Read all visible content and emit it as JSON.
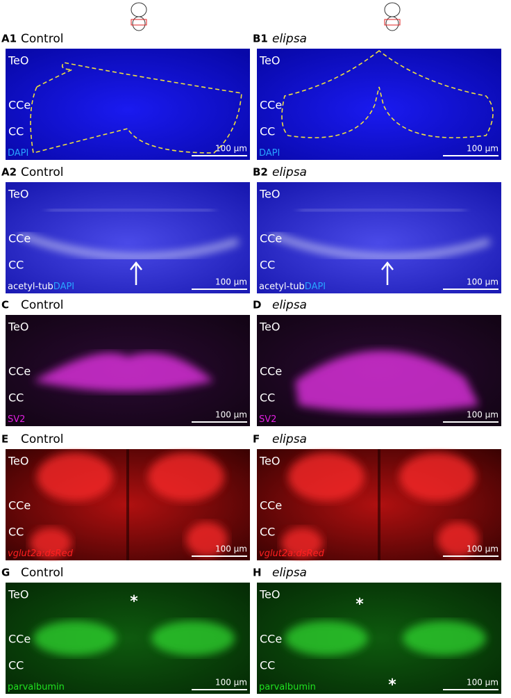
{
  "panels": [
    {
      "label": "A1",
      "title": "Control",
      "regions": [
        "TeO",
        "CCe",
        "CC"
      ],
      "stain": [
        "DAPI"
      ],
      "scale_bar": "100 µm"
    },
    {
      "label": "B1",
      "title": "elipsa",
      "regions": [
        "TeO",
        "CCe",
        "CC"
      ],
      "stain": [
        "DAPI"
      ],
      "scale_bar": "100 µm"
    },
    {
      "label": "A2",
      "title": "Control",
      "regions": [
        "TeO",
        "CCe",
        "CC"
      ],
      "stain": [
        "acetyl-tub",
        "DAPI"
      ],
      "scale_bar": "100 µm"
    },
    {
      "label": "B2",
      "title": "elipsa",
      "regions": [
        "TeO",
        "CCe",
        "CC"
      ],
      "stain": [
        "acetyl-tub",
        "DAPI"
      ],
      "scale_bar": "100 µm"
    },
    {
      "label": "C",
      "title": "Control",
      "regions": [
        "TeO",
        "CCe",
        "CC"
      ],
      "stain": [
        "SV2"
      ],
      "scale_bar": "100 µm"
    },
    {
      "label": "D",
      "title": "elipsa",
      "regions": [
        "TeO",
        "CCe",
        "CC"
      ],
      "stain": [
        "SV2"
      ],
      "scale_bar": "100 µm"
    },
    {
      "label": "E",
      "title": "Control",
      "regions": [
        "TeO",
        "CCe",
        "CC"
      ],
      "stain": [
        "vglut2a:dsRed"
      ],
      "scale_bar": "100 µm"
    },
    {
      "label": "F",
      "title": "elipsa",
      "regions": [
        "TeO",
        "CCe",
        "CC"
      ],
      "stain": [
        "vglut2a:dsRed"
      ],
      "scale_bar": "100 µm"
    },
    {
      "label": "G",
      "title": "Control",
      "regions": [
        "TeO",
        "CCe",
        "CC"
      ],
      "stain": [
        "parvalbumin"
      ],
      "scale_bar": "100 µm",
      "asterisks": [
        "*"
      ]
    },
    {
      "label": "H",
      "title": "elipsa",
      "regions": [
        "TeO",
        "CCe",
        "CC"
      ],
      "stain": [
        "parvalbumin"
      ],
      "scale_bar": "100 µm",
      "asterisks": [
        "*",
        "*"
      ]
    }
  ]
}
